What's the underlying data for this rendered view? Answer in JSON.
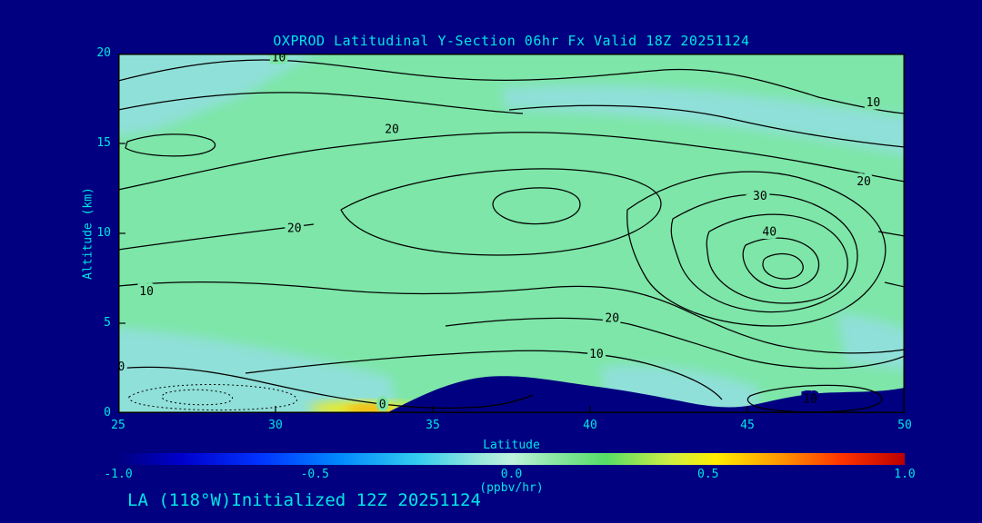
{
  "header": {
    "title": "OXPROD Latitudinal Y-Section 06hr  Fx Valid 18Z 20251124"
  },
  "footer": {
    "init_label": "LA (118°W)Initialized 12Z 20251124"
  },
  "colors": {
    "page_bg": "#000080",
    "label_text": "#00e5e5",
    "plot_fill": "#7de6a8",
    "patch_cyan": "#8fe0d8",
    "terrain": "#000080",
    "contour_line": "#000000",
    "hotspot_yellow": "#ffee00",
    "hotspot_orange": "#ff9900"
  },
  "chart_data": {
    "type": "contour",
    "title": "OXPROD Latitudinal Y-Section 06hr  Fx Valid 18Z 20251124",
    "xlabel": "Latitude",
    "ylabel": "Altitude (km)",
    "xlim": [
      25,
      50
    ],
    "ylim": [
      0,
      20
    ],
    "x_ticks": [
      25,
      30,
      35,
      40,
      45,
      50
    ],
    "y_ticks": [
      0,
      5,
      10,
      15,
      20
    ],
    "grid": false,
    "contour_levels": [
      0,
      10,
      20,
      30,
      40
    ],
    "contour_interval": 10,
    "max_center": {
      "lat": 46,
      "alt": 9,
      "value": "40+"
    },
    "contour_labels": [
      {
        "level": "10",
        "lat": 30.1,
        "alt": 19.8
      },
      {
        "level": "10",
        "lat": 49.0,
        "alt": 17.3
      },
      {
        "level": "20",
        "lat": 33.7,
        "alt": 15.8
      },
      {
        "level": "20",
        "lat": 48.7,
        "alt": 12.9
      },
      {
        "level": "30",
        "lat": 45.4,
        "alt": 12.1
      },
      {
        "level": "40",
        "lat": 45.7,
        "alt": 10.1
      },
      {
        "level": "20",
        "lat": 30.6,
        "alt": 10.3
      },
      {
        "level": "10",
        "lat": 25.9,
        "alt": 6.8
      },
      {
        "level": "20",
        "lat": 40.7,
        "alt": 5.3
      },
      {
        "level": "10",
        "lat": 40.2,
        "alt": 3.3
      },
      {
        "level": "0",
        "lat": 25.1,
        "alt": 2.6,
        "halo": "#8fe0d8"
      },
      {
        "level": "0",
        "lat": 33.4,
        "alt": 0.5
      },
      {
        "level": "10",
        "lat": 47.0,
        "alt": 0.8,
        "halo": "#000080"
      }
    ],
    "shading_notes": "field mostly 0 to +0.1 ppbv/hr (pale green) with slightly negative cyan patches; dashed contours (negative) near lat 25-29 below 2 km; yellow-orange positive hotspot near lat 32-33 at surface; dark navy terrain silhouette along bottom between lat 34-50",
    "colorbar": {
      "label": "(ppbv/hr)",
      "ticks": [
        "-1.0",
        "-0.5",
        "0.0",
        "0.5",
        "1.0"
      ],
      "min": -1.0,
      "max": 1.0,
      "gradient": [
        [
          0.0,
          "#000080"
        ],
        [
          0.08,
          "#0000cc"
        ],
        [
          0.18,
          "#0033ff"
        ],
        [
          0.28,
          "#0088ff"
        ],
        [
          0.38,
          "#33ccee"
        ],
        [
          0.46,
          "#99e8dd"
        ],
        [
          0.5,
          "#bff2de"
        ],
        [
          0.55,
          "#8fe8a8"
        ],
        [
          0.62,
          "#55dd66"
        ],
        [
          0.7,
          "#ccee44"
        ],
        [
          0.76,
          "#ffee00"
        ],
        [
          0.84,
          "#ff9900"
        ],
        [
          0.92,
          "#ff3300"
        ],
        [
          1.0,
          "#bb0000"
        ]
      ]
    }
  }
}
